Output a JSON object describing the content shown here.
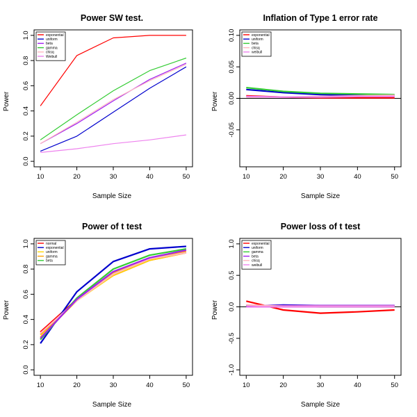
{
  "chart_data": [
    {
      "type": "line",
      "title": "Power SW test.",
      "xlabel": "Sample Size",
      "ylabel": "Power",
      "x": [
        10,
        20,
        30,
        40,
        50
      ],
      "xticks": [
        "10",
        "20",
        "30",
        "40",
        "50"
      ],
      "ylim": [
        0,
        1
      ],
      "yticks": [
        "0.0",
        "0.2",
        "0.4",
        "0.6",
        "0.8",
        "1.0"
      ],
      "legend": "top-left",
      "series": [
        {
          "name": "exponential",
          "color": "#ff0000",
          "values": [
            0.44,
            0.84,
            0.98,
            1.0,
            1.0
          ]
        },
        {
          "name": "uniform",
          "color": "#0000cd",
          "values": [
            0.08,
            0.2,
            0.39,
            0.58,
            0.75
          ]
        },
        {
          "name": "beta",
          "color": "#a020f0",
          "values": [
            0.14,
            0.3,
            0.48,
            0.65,
            0.78
          ]
        },
        {
          "name": "gamma",
          "color": "#33cc33",
          "values": [
            0.17,
            0.37,
            0.56,
            0.72,
            0.82
          ]
        },
        {
          "name": "chisq",
          "color": "#ffb6c1",
          "values": [
            0.14,
            0.31,
            0.49,
            0.64,
            0.77
          ]
        },
        {
          "name": "Weibull",
          "color": "#ee82ee",
          "values": [
            0.07,
            0.1,
            0.14,
            0.17,
            0.21
          ]
        }
      ]
    },
    {
      "type": "line",
      "title": "Inflation of Type 1 error rate",
      "xlabel": "Sample Size",
      "ylabel": "Power",
      "x": [
        10,
        20,
        30,
        40,
        50
      ],
      "xticks": [
        "10",
        "20",
        "30",
        "40",
        "50"
      ],
      "ylim": [
        -0.1,
        0.1
      ],
      "yticks": [
        "-0.05",
        "0.00",
        "0.05",
        "0.10"
      ],
      "hline": 0,
      "legend": "top-left",
      "series": [
        {
          "name": "exponential",
          "color": "#ff0000",
          "values": [
            0.004,
            0.002,
            0.001,
            0.001,
            0.001
          ]
        },
        {
          "name": "uniform",
          "color": "#0000cd",
          "values": [
            0.014,
            0.009,
            0.006,
            0.005,
            0.004
          ]
        },
        {
          "name": "beta",
          "color": "#33cc33",
          "values": [
            0.017,
            0.011,
            0.008,
            0.007,
            0.006
          ]
        },
        {
          "name": "chisq",
          "color": "#ffb6c1",
          "values": [
            0.002,
            0.002,
            0.003,
            0.004,
            0.005
          ]
        },
        {
          "name": "weibull",
          "color": "#ee82ee",
          "values": [
            0.003,
            0.002,
            0.002,
            0.003,
            0.003
          ]
        }
      ]
    },
    {
      "type": "line",
      "title": "Power of t test",
      "xlabel": "Sample Size",
      "ylabel": "Power",
      "x": [
        10,
        20,
        30,
        40,
        50
      ],
      "xticks": [
        "10",
        "20",
        "30",
        "40",
        "50"
      ],
      "ylim": [
        0,
        1
      ],
      "yticks": [
        "0.0",
        "0.2",
        "0.4",
        "0.6",
        "0.8",
        "1.0"
      ],
      "legend": "top-left",
      "series": [
        {
          "name": "normal",
          "color": "#ff0000",
          "values": [
            0.3,
            0.56,
            0.75,
            0.87,
            0.93
          ]
        },
        {
          "name": "exponential",
          "color": "#0000cd",
          "values": [
            0.21,
            0.62,
            0.86,
            0.96,
            0.98
          ]
        },
        {
          "name": "uniform",
          "color": "#ffd700",
          "values": [
            0.26,
            0.55,
            0.75,
            0.87,
            0.93
          ]
        },
        {
          "name": "gamma",
          "color": "#ffa500",
          "values": [
            0.28,
            0.55,
            0.77,
            0.88,
            0.94
          ]
        },
        {
          "name": "beta",
          "color": "#33cc33",
          "values": [
            0.24,
            0.57,
            0.8,
            0.91,
            0.96
          ]
        },
        {
          "name": "",
          "color": "#ffb6c1",
          "values": [
            0.29,
            0.55,
            0.76,
            0.88,
            0.93
          ]
        },
        {
          "name": "",
          "color": "#a020f0",
          "values": [
            0.25,
            0.56,
            0.78,
            0.89,
            0.95
          ]
        }
      ]
    },
    {
      "type": "line",
      "title": "Power loss of t test",
      "xlabel": "Sample Size",
      "ylabel": "Power",
      "x": [
        10,
        20,
        30,
        40,
        50
      ],
      "xticks": [
        "10",
        "20",
        "30",
        "40",
        "50"
      ],
      "ylim": [
        -1,
        1
      ],
      "yticks": [
        "-1.0",
        "-0.5",
        "0.0",
        "0.5",
        "1.0"
      ],
      "hline": 0,
      "legend": "top-left",
      "series": [
        {
          "name": "exponential",
          "color": "#ff0000",
          "values": [
            0.09,
            -0.05,
            -0.1,
            -0.08,
            -0.05
          ]
        },
        {
          "name": "uniform",
          "color": "#0000cd",
          "values": [
            0.01,
            0.03,
            0.02,
            0.02,
            0.02
          ]
        },
        {
          "name": "gamma",
          "color": "#33cc33",
          "values": [
            0.02,
            0.01,
            0.0,
            0.0,
            0.0
          ]
        },
        {
          "name": "beta",
          "color": "#a020f0",
          "values": [
            0.02,
            0.02,
            0.02,
            0.02,
            0.02
          ]
        },
        {
          "name": "chisq",
          "color": "#ffb6c1",
          "values": [
            0.03,
            0.01,
            0.01,
            0.01,
            0.01
          ]
        },
        {
          "name": "weibull",
          "color": "#ee82ee",
          "values": [
            0.0,
            0.0,
            0.0,
            0.0,
            0.0
          ]
        }
      ]
    }
  ]
}
